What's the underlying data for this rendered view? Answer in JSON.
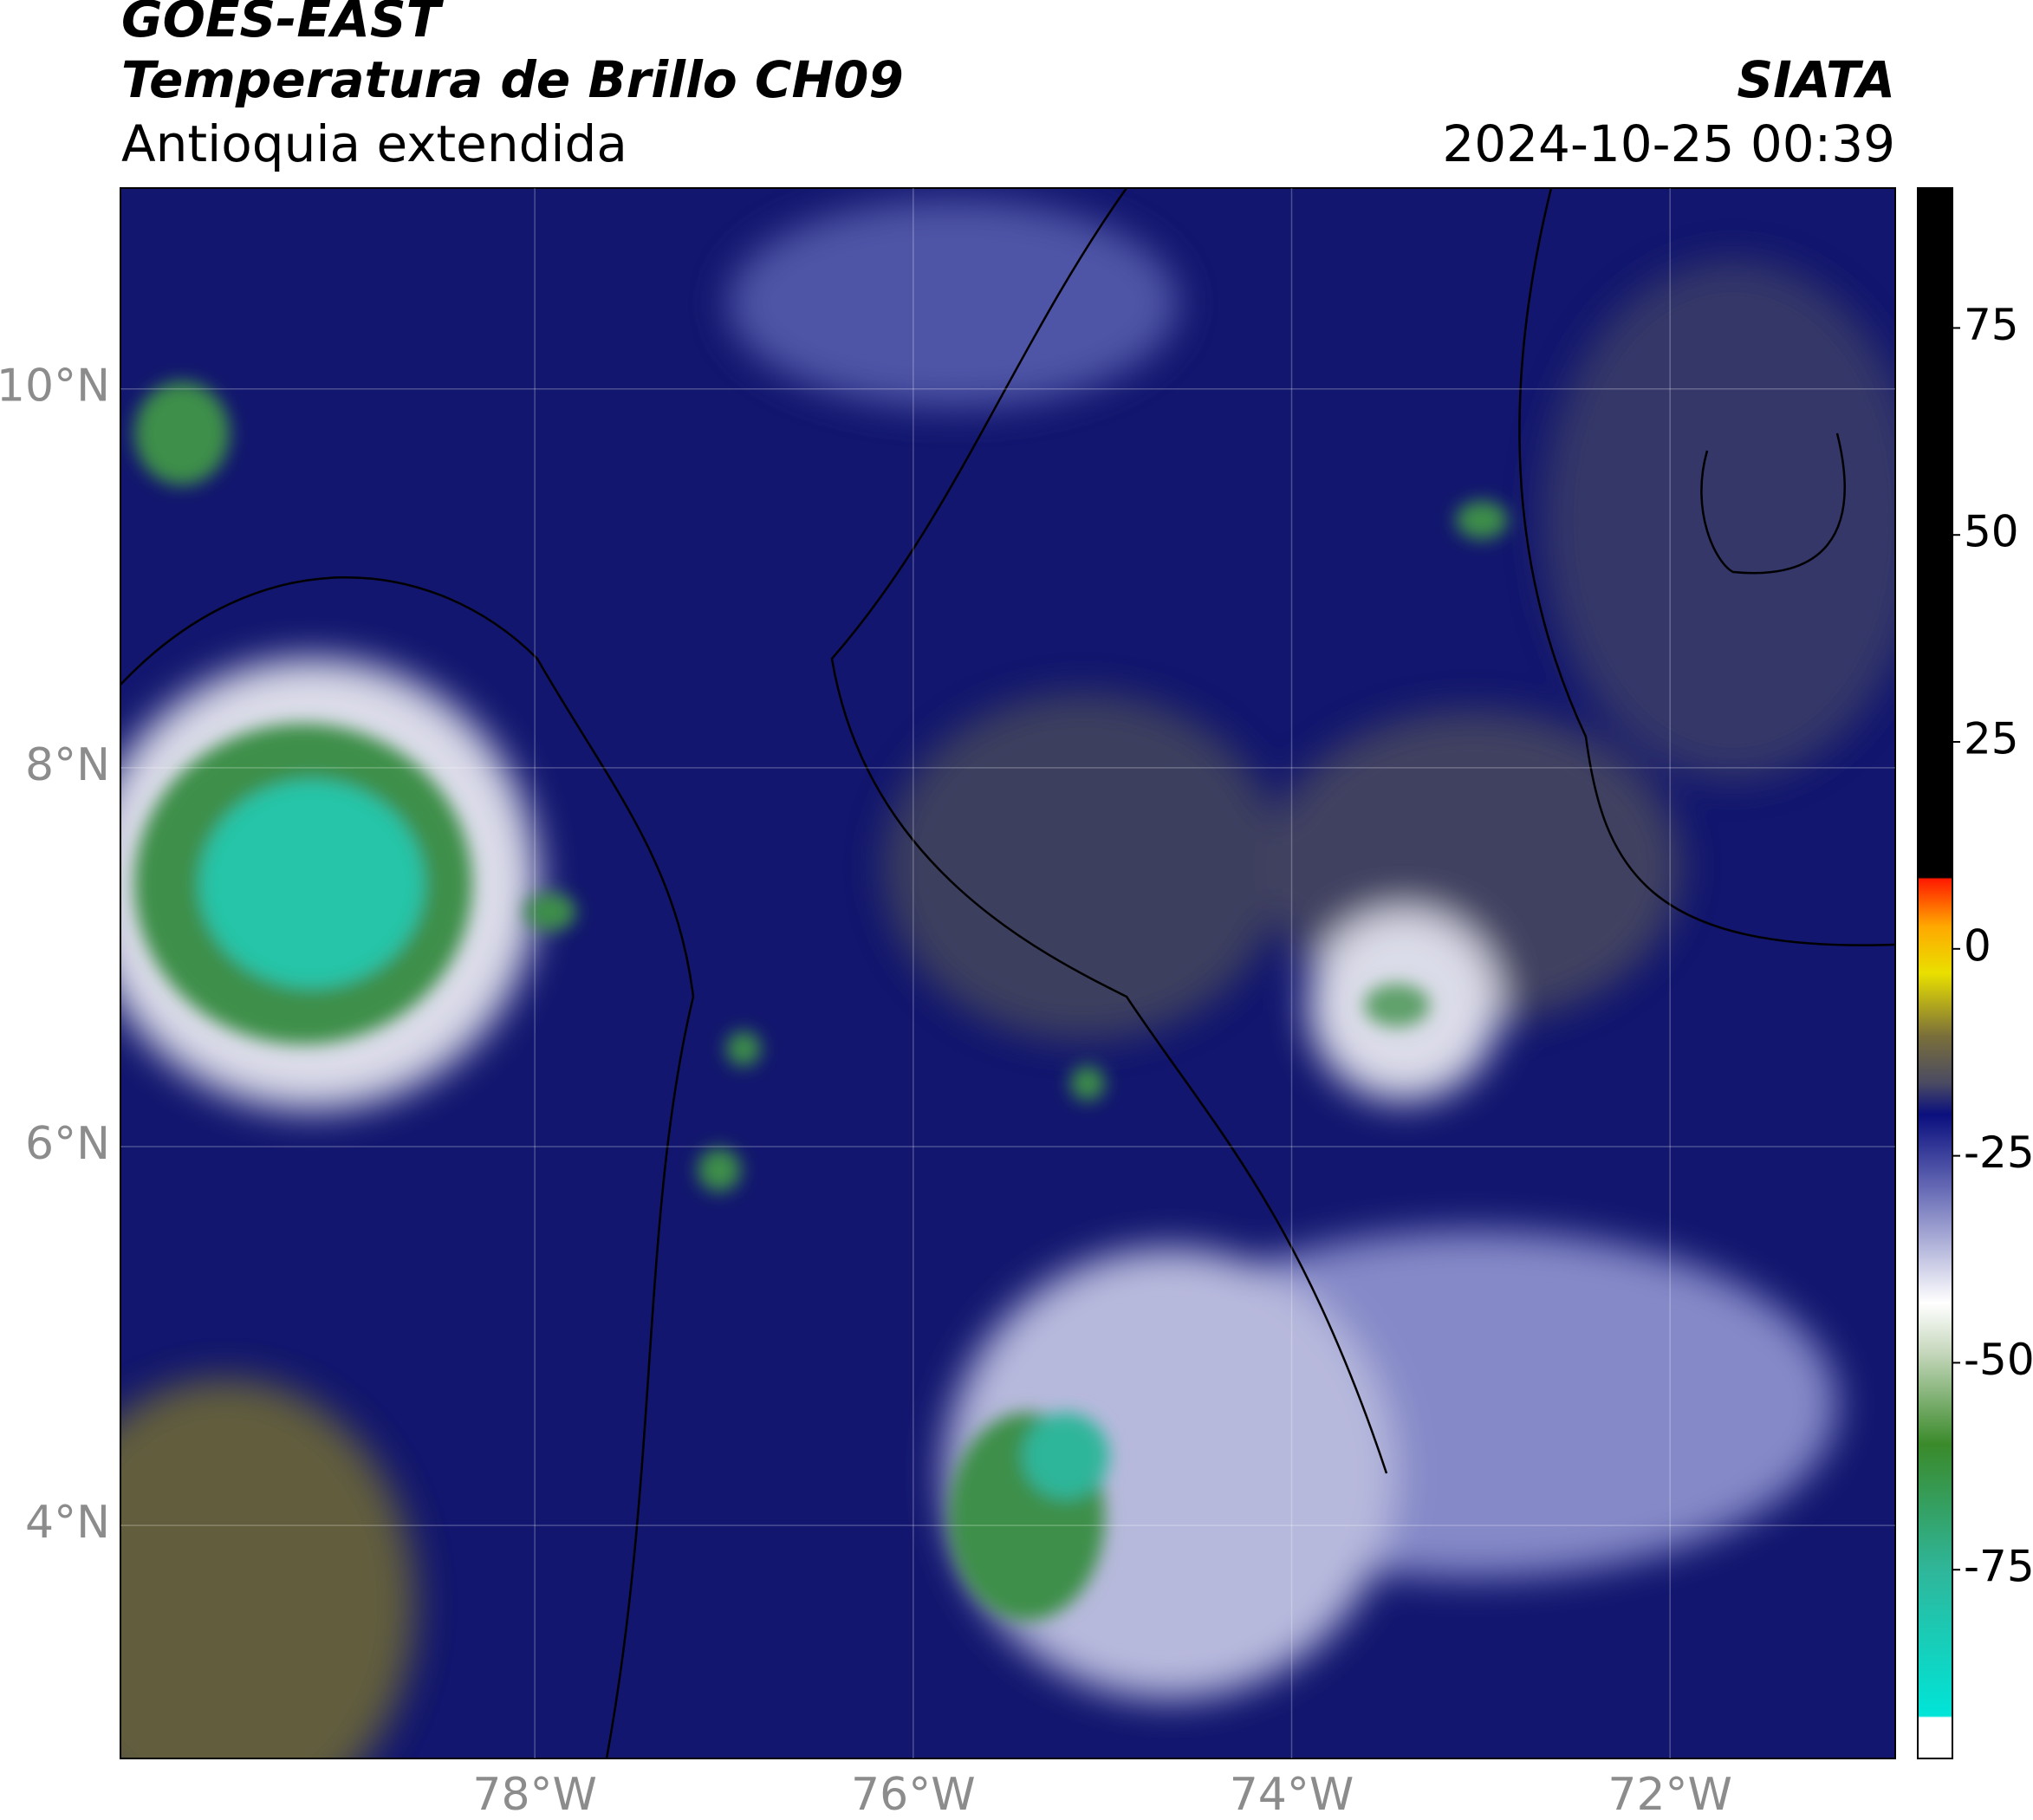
{
  "header": {
    "title": "GOES-EAST",
    "subtitle": "Temperatura de Brillo CH09",
    "region": "Antioquia extendida",
    "source": "SIATA",
    "timestamp": "2024-10-25 00:39"
  },
  "map": {
    "lon_lim": [
      -80.19,
      -70.81
    ],
    "lat_lim": [
      2.77,
      11.06
    ],
    "lat_ticks": [
      {
        "value": 10,
        "label": "10°N"
      },
      {
        "value": 8,
        "label": "8°N"
      },
      {
        "value": 6,
        "label": "6°N"
      },
      {
        "value": 4,
        "label": "4°N"
      }
    ],
    "lon_ticks": [
      {
        "value": -78,
        "label": "78°W"
      },
      {
        "value": -76,
        "label": "76°W"
      },
      {
        "value": -74,
        "label": "74°W"
      },
      {
        "value": -72,
        "label": "72°W"
      }
    ],
    "grid": true
  },
  "colorbar": {
    "lim": [
      -97.8,
      91.9
    ],
    "ticks": [
      75,
      50,
      25,
      0,
      -25,
      -50,
      -75
    ]
  }
}
